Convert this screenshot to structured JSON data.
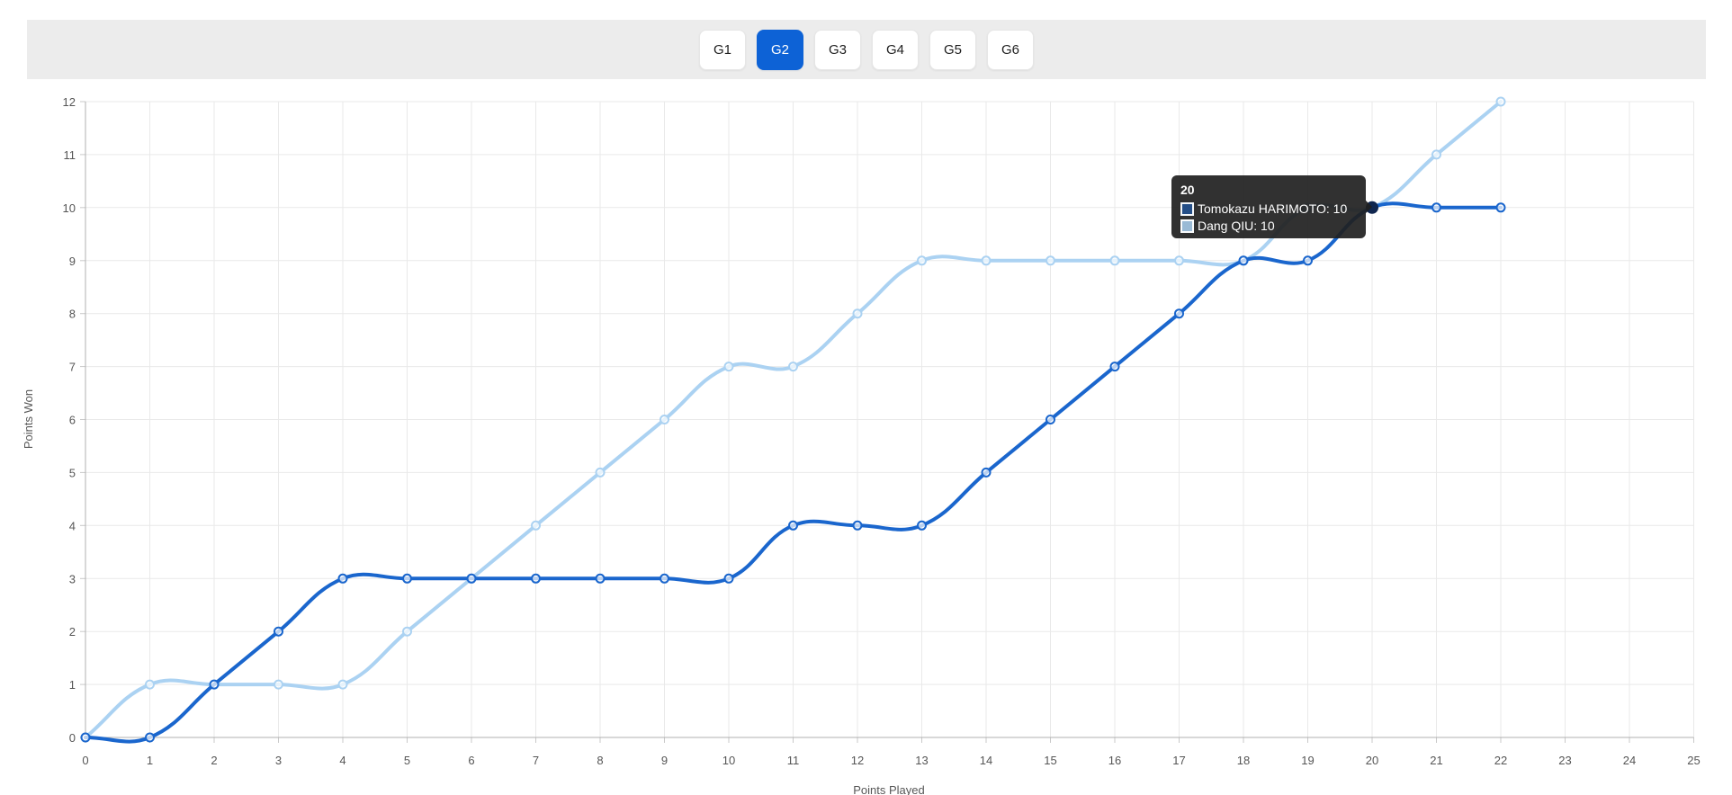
{
  "toolbar": {
    "games": [
      {
        "label": "G1",
        "active": false
      },
      {
        "label": "G2",
        "active": true
      },
      {
        "label": "G3",
        "active": false
      },
      {
        "label": "G4",
        "active": false
      },
      {
        "label": "G5",
        "active": false
      },
      {
        "label": "G6",
        "active": false
      }
    ],
    "active_color": "#0d62d6"
  },
  "chart_data": {
    "type": "line",
    "title": "",
    "xlabel": "Points Played",
    "ylabel": "Points Won",
    "xlim": [
      0,
      25
    ],
    "ylim": [
      0,
      12
    ],
    "x_ticks": [
      0,
      1,
      2,
      3,
      4,
      5,
      6,
      7,
      8,
      9,
      10,
      11,
      12,
      13,
      14,
      15,
      16,
      17,
      18,
      19,
      20,
      21,
      22,
      23,
      24,
      25
    ],
    "y_ticks": [
      0,
      1,
      2,
      3,
      4,
      5,
      6,
      7,
      8,
      9,
      10,
      11,
      12
    ],
    "grid": true,
    "legend_position": "none",
    "x": [
      0,
      1,
      2,
      3,
      4,
      5,
      6,
      7,
      8,
      9,
      10,
      11,
      12,
      13,
      14,
      15,
      16,
      17,
      18,
      19,
      20,
      21,
      22
    ],
    "series": [
      {
        "name": "Dang QIU",
        "color": "#abd2f2",
        "values": [
          0,
          1,
          1,
          1,
          1,
          2,
          3,
          4,
          5,
          6,
          7,
          7,
          8,
          9,
          9,
          9,
          9,
          9,
          9,
          10,
          10,
          11,
          12
        ]
      },
      {
        "name": "Tomokazu HARIMOTO",
        "color": "#1a66cd",
        "values": [
          0,
          0,
          1,
          2,
          3,
          3,
          3,
          3,
          3,
          3,
          3,
          4,
          4,
          4,
          5,
          6,
          7,
          8,
          9,
          9,
          10,
          10,
          10
        ]
      }
    ],
    "tooltip": {
      "title": "20",
      "rows": [
        {
          "series": "Tomokazu HARIMOTO",
          "value": 10,
          "text": "Tomokazu HARIMOTO: 10"
        },
        {
          "series": "Dang QIU",
          "value": 10,
          "text": "Dang QIU: 10"
        }
      ],
      "point": {
        "x": 20,
        "y": 10
      },
      "point_color": "#10264f"
    }
  }
}
